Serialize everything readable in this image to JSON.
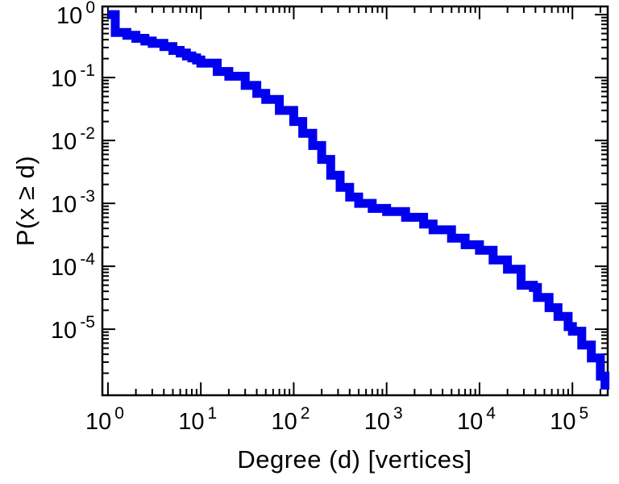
{
  "figure": {
    "background": "#ffffff",
    "text_color": "#000000"
  },
  "chart_data": {
    "type": "line",
    "subtype": "ccdf-step-plot",
    "title": "",
    "xlabel": "Degree (d) [vertices]",
    "ylabel": "P(x ≥ d)",
    "x_scale": "log",
    "y_scale": "log",
    "x_range_exp": [
      -0.06,
      5.38
    ],
    "y_range_exp": [
      -6.05,
      0.13
    ],
    "x_major_ticks_exp": [
      0,
      1,
      2,
      3,
      4,
      5
    ],
    "y_major_ticks_exp": [
      0,
      -1,
      -2,
      -3,
      -4,
      -5
    ],
    "tick_base": "10",
    "grid": false,
    "legend": null,
    "line_color": "#0000ee",
    "line_width": 11,
    "curve_style": "steps-post",
    "points": [
      [
        1,
        1.0
      ],
      [
        1.2,
        0.52
      ],
      [
        1.6,
        0.47
      ],
      [
        2,
        0.42
      ],
      [
        2.5,
        0.38
      ],
      [
        3,
        0.35
      ],
      [
        4,
        0.31
      ],
      [
        5,
        0.27
      ],
      [
        6,
        0.245
      ],
      [
        7,
        0.22
      ],
      [
        8,
        0.205
      ],
      [
        9,
        0.19
      ],
      [
        10,
        0.17
      ],
      [
        15,
        0.125
      ],
      [
        20,
        0.105
      ],
      [
        30,
        0.075
      ],
      [
        40,
        0.056
      ],
      [
        50,
        0.045
      ],
      [
        70,
        0.03
      ],
      [
        100,
        0.02
      ],
      [
        125,
        0.013
      ],
      [
        160,
        0.0083
      ],
      [
        200,
        0.005
      ],
      [
        250,
        0.0028
      ],
      [
        316,
        0.0018
      ],
      [
        400,
        0.00126
      ],
      [
        500,
        0.001
      ],
      [
        700,
        0.00083
      ],
      [
        1000,
        0.00074
      ],
      [
        1600,
        0.0006
      ],
      [
        2500,
        0.00047
      ],
      [
        3160,
        0.00038
      ],
      [
        5000,
        0.00028
      ],
      [
        7000,
        0.00022
      ],
      [
        10000,
        0.00018
      ],
      [
        14000,
        0.000126
      ],
      [
        20000,
        9e-05
      ],
      [
        28000,
        5e-05
      ],
      [
        38000,
        4.6e-05
      ],
      [
        42000,
        3.2e-05
      ],
      [
        56000,
        2.2e-05
      ],
      [
        70000,
        1.6e-05
      ],
      [
        90000,
        1.1e-05
      ],
      [
        100000,
        9.3e-06
      ],
      [
        126000,
        5.6e-06
      ],
      [
        160000,
        3.5e-06
      ],
      [
        200000,
        1.8e-06
      ],
      [
        224000,
        1.1e-06
      ]
    ]
  }
}
